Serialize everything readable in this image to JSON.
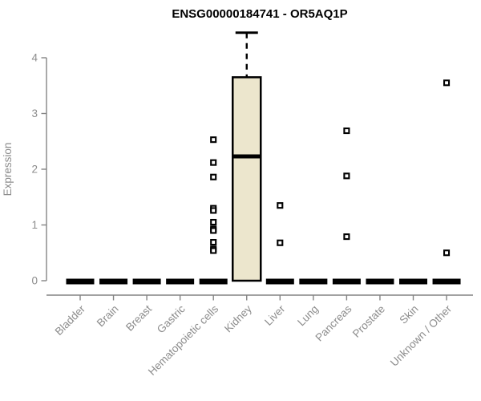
{
  "chart_data": {
    "type": "box",
    "title": "ENSG00000184741 - OR5AQ1P",
    "ylabel": "Expression",
    "xlabel": "",
    "ylim": [
      0,
      4
    ],
    "yticks": [
      "0",
      "1",
      "2",
      "3",
      "4"
    ],
    "grid": false,
    "legend": "none",
    "categories": [
      "Bladder",
      "Brain",
      "Breast",
      "Gastric",
      "Hematopoietic cells",
      "Kidney",
      "Liver",
      "Lung",
      "Pancreas",
      "Prostate",
      "Skin",
      "Unknown / Other"
    ],
    "boxes": [
      {
        "category": "Bladder",
        "q1": 0,
        "median": 0,
        "q3": 0,
        "whisker_low": 0,
        "whisker_high": 0,
        "outliers": []
      },
      {
        "category": "Brain",
        "q1": 0,
        "median": 0,
        "q3": 0,
        "whisker_low": 0,
        "whisker_high": 0,
        "outliers": []
      },
      {
        "category": "Breast",
        "q1": 0,
        "median": 0,
        "q3": 0,
        "whisker_low": 0,
        "whisker_high": 0,
        "outliers": []
      },
      {
        "category": "Gastric",
        "q1": 0,
        "median": 0,
        "q3": 0,
        "whisker_low": 0,
        "whisker_high": 0,
        "outliers": []
      },
      {
        "category": "Hematopoietic cells",
        "q1": 0,
        "median": 0,
        "q3": 0,
        "whisker_low": 0,
        "whisker_high": 0,
        "outliers": [
          2.53,
          2.12,
          1.86,
          1.3,
          1.26,
          1.05,
          0.93,
          0.9,
          0.69,
          0.57,
          0.54
        ]
      },
      {
        "category": "Kidney",
        "q1": 0,
        "median": 2.23,
        "q3": 3.65,
        "whisker_low": 0,
        "whisker_high": 4.45,
        "outliers": []
      },
      {
        "category": "Liver",
        "q1": 0,
        "median": 0,
        "q3": 0,
        "whisker_low": 0,
        "whisker_high": 0,
        "outliers": [
          1.35,
          0.68
        ]
      },
      {
        "category": "Lung",
        "q1": 0,
        "median": 0,
        "q3": 0,
        "whisker_low": 0,
        "whisker_high": 0,
        "outliers": []
      },
      {
        "category": "Pancreas",
        "q1": 0,
        "median": 0,
        "q3": 0,
        "whisker_low": 0,
        "whisker_high": 0,
        "outliers": [
          2.69,
          1.88,
          0.79
        ]
      },
      {
        "category": "Prostate",
        "q1": 0,
        "median": 0,
        "q3": 0,
        "whisker_low": 0,
        "whisker_high": 0,
        "outliers": []
      },
      {
        "category": "Skin",
        "q1": 0,
        "median": 0,
        "q3": 0,
        "whisker_low": 0,
        "whisker_high": 0,
        "outliers": []
      },
      {
        "category": "Unknown / Other",
        "q1": 0,
        "median": 0,
        "q3": 0,
        "whisker_low": 0,
        "whisker_high": 0,
        "outliers": [
          3.55,
          0.5
        ]
      }
    ]
  },
  "colors": {
    "background": "#ffffff",
    "box_fill": "#ece6cd",
    "box_stroke": "#000000",
    "axis": "#848484",
    "tick_label": "#8c8c8c",
    "title": "#000000"
  }
}
